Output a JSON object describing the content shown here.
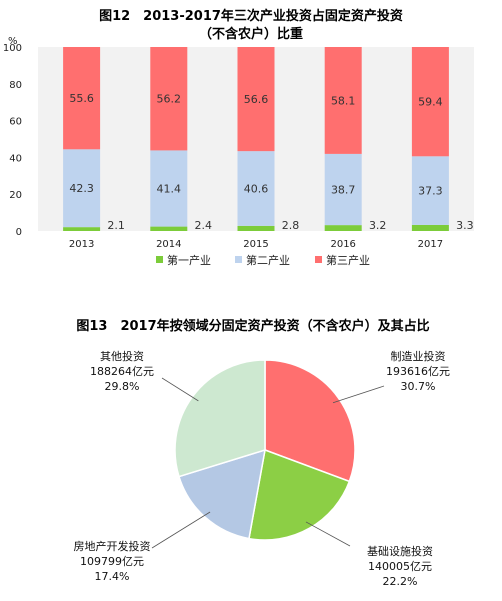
{
  "chart_data": [
    {
      "type": "bar",
      "title": "图12　2013-2017年三次产业投资占固定资产投资",
      "subtitle": "（不含农户）比重",
      "ylabel": "%",
      "ylim": [
        0,
        100
      ],
      "yticks": [
        "100",
        "80",
        "60",
        "40",
        "20",
        "0"
      ],
      "categories": [
        "2013",
        "2014",
        "2015",
        "2016",
        "2017"
      ],
      "stacked": true,
      "legend_position": "bottom",
      "series": [
        {
          "name": "第一产业",
          "color": "#7ccc3a",
          "values": [
            2.1,
            2.4,
            2.8,
            3.2,
            3.3
          ],
          "labels": [
            "2.1",
            "2.4",
            "2.8",
            "3.2",
            "3.3"
          ]
        },
        {
          "name": "第二产业",
          "color": "#bed3ee",
          "values": [
            42.3,
            41.4,
            40.6,
            38.7,
            37.3
          ],
          "labels": [
            "42.3",
            "41.4",
            "40.6",
            "38.7",
            "37.3"
          ]
        },
        {
          "name": "第三产业",
          "color": "#ff6f6f",
          "values": [
            55.6,
            56.2,
            56.6,
            58.1,
            59.4
          ],
          "labels": [
            "55.6",
            "56.2",
            "56.6",
            "58.1",
            "59.4"
          ]
        }
      ],
      "grid": false
    },
    {
      "type": "pie",
      "title": "图13　2017年按领域分固定资产投资（不含农户）及其占比",
      "slices": [
        {
          "name": "制造业投资",
          "amount": "193616亿元",
          "pct_label": "30.7%",
          "value": 30.7,
          "color": "#ff6f6f"
        },
        {
          "name": "基础设施投资",
          "amount": "140005亿元",
          "pct_label": "22.2%",
          "value": 22.2,
          "color": "#8ccf45"
        },
        {
          "name": "房地产开发投资",
          "amount": "109799亿元",
          "pct_label": "17.4%",
          "value": 17.4,
          "color": "#b4c8e4"
        },
        {
          "name": "其他投资",
          "amount": "188264亿元",
          "pct_label": "29.8%",
          "value": 29.8,
          "color": "#cde8d0"
        }
      ]
    }
  ]
}
